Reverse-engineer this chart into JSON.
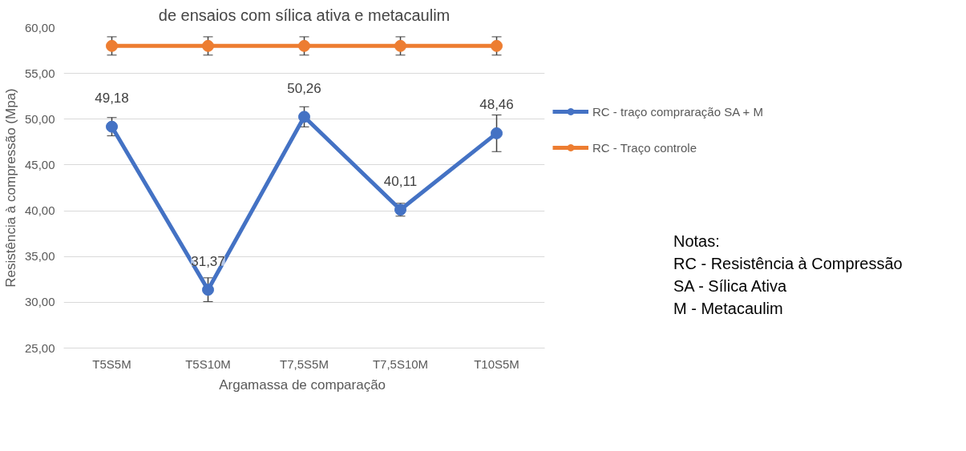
{
  "chart_data": {
    "type": "line",
    "title": "de ensaios com sílica ativa e metacaulim",
    "xlabel": "Argamassa  de comparação",
    "ylabel": "Resistência à compressão (Mpa)",
    "categories": [
      "T5S5M",
      "T5S10M",
      "T7,5S5M",
      "T7,5S10M",
      "T10S5M"
    ],
    "series": [
      {
        "name": "RC - traço compraração SA + M",
        "color": "#4472c4",
        "values": [
          49.18,
          31.37,
          50.26,
          40.11,
          48.46
        ],
        "errors": [
          1.0,
          1.3,
          1.1,
          0.7,
          2.0
        ],
        "value_labels": [
          "49,18",
          "31,37",
          "50,26",
          "40,11",
          "48,46"
        ]
      },
      {
        "name": "RC - Traço controle",
        "color": "#ed7d31",
        "values": [
          58,
          58,
          58,
          58,
          58
        ],
        "errors": [
          1.0,
          1.0,
          1.0,
          1.0,
          1.0
        ]
      }
    ],
    "ylim": [
      25,
      60
    ],
    "yticks": [
      {
        "value": 25,
        "label": "25,00"
      },
      {
        "value": 30,
        "label": "30,00"
      },
      {
        "value": 35,
        "label": "35,00"
      },
      {
        "value": 40,
        "label": "40,00"
      },
      {
        "value": 45,
        "label": "45,00"
      },
      {
        "value": 50,
        "label": "50,00"
      },
      {
        "value": 55,
        "label": "55,00"
      },
      {
        "value": 60,
        "label": "60,00"
      }
    ],
    "grid": "y",
    "legend": "right",
    "marker": "circle",
    "line_style": "solid",
    "annotations": [
      "Notas:",
      "RC - Resistência à Compressão",
      "SA - Sílica Ativa",
      "M - Metacaulim"
    ]
  }
}
